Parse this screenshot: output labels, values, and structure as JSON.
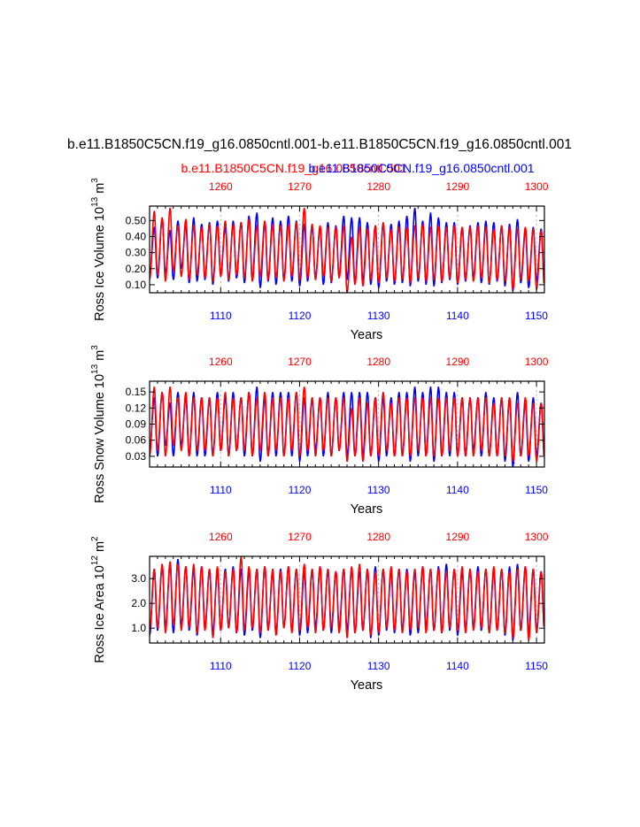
{
  "page": {
    "title": "b.e11.B1850C5CN.f19_g16.0850cntl.001-b.e11.B1850C5CN.f19_g16.0850cntl.001",
    "legend_red": "b.e11.B1850C5CN.f19_g16.0850cntl.001",
    "legend_blue": "b.e11.B1850C5CN.f19_g16.0850cntl.001"
  },
  "colors": {
    "red": "#ff0000",
    "blue": "#0000ff",
    "axis": "#000000",
    "grid": "#999999"
  },
  "chart_data": [
    {
      "type": "line",
      "ylabel_main": "Ross Ice Volume 10",
      "ylabel_exp": "13",
      "ylabel_unit": "m",
      "ylabel_unit_exp": "3",
      "xlabel": "Years",
      "xlim_bottom": [
        1101,
        1151
      ],
      "xlim_top": [
        1251,
        1301
      ],
      "ylim": [
        0.05,
        0.59
      ],
      "yticks": [
        0.1,
        0.2,
        0.3,
        0.4,
        0.5
      ],
      "yticklabels": [
        "0.10",
        "0.20",
        "0.30",
        "0.40",
        "0.50"
      ],
      "xticks_bottom": [
        1110,
        1120,
        1130,
        1140,
        1150
      ],
      "xticklabels_bottom": [
        "1110",
        "1120",
        "1130",
        "1140",
        "1150"
      ],
      "xticks_top": [
        1260,
        1270,
        1280,
        1290,
        1300
      ],
      "xticklabels_top": [
        "1260",
        "1270",
        "1280",
        "1290",
        "1300"
      ],
      "series": [
        {
          "name": "blue",
          "color": "#0000ff",
          "axis": "bottom",
          "max": [
            0.46,
            0.51,
            0.44,
            0.5,
            0.47,
            0.52,
            0.48,
            0.49,
            0.5,
            0.46,
            0.5,
            0.49,
            0.53,
            0.55,
            0.49,
            0.52,
            0.5,
            0.53,
            0.5,
            0.48,
            0.47,
            0.46,
            0.49,
            0.47,
            0.53,
            0.52,
            0.52,
            0.49,
            0.47,
            0.48,
            0.48,
            0.5,
            0.53,
            0.58,
            0.5,
            0.55,
            0.52,
            0.49,
            0.49,
            0.46,
            0.47,
            0.49,
            0.5,
            0.49,
            0.47,
            0.48,
            0.51,
            0.44,
            0.46,
            0.45
          ],
          "min": [
            0.15,
            0.14,
            0.17,
            0.13,
            0.2,
            0.11,
            0.12,
            0.13,
            0.1,
            0.16,
            0.12,
            0.14,
            0.11,
            0.13,
            0.08,
            0.12,
            0.1,
            0.13,
            0.12,
            0.09,
            0.12,
            0.14,
            0.1,
            0.11,
            0.15,
            0.13,
            0.11,
            0.12,
            0.1,
            0.08,
            0.12,
            0.1,
            0.11,
            0.09,
            0.12,
            0.1,
            0.09,
            0.11,
            0.13,
            0.1,
            0.12,
            0.14,
            0.11,
            0.1,
            0.12,
            0.09,
            0.06,
            0.11,
            0.08,
            0.12
          ]
        },
        {
          "name": "red",
          "color": "#ff0000",
          "axis": "top",
          "max": [
            0.56,
            0.52,
            0.58,
            0.47,
            0.51,
            0.47,
            0.46,
            0.48,
            0.47,
            0.5,
            0.48,
            0.49,
            0.51,
            0.47,
            0.5,
            0.48,
            0.47,
            0.48,
            0.49,
            0.58,
            0.48,
            0.47,
            0.46,
            0.46,
            0.47,
            0.4,
            0.46,
            0.45,
            0.47,
            0.49,
            0.45,
            0.46,
            0.46,
            0.47,
            0.48,
            0.46,
            0.47,
            0.46,
            0.47,
            0.46,
            0.46,
            0.47,
            0.46,
            0.45,
            0.47,
            0.46,
            0.45,
            0.46,
            0.45,
            0.44
          ],
          "min": [
            0.13,
            0.16,
            0.12,
            0.18,
            0.15,
            0.13,
            0.16,
            0.14,
            0.12,
            0.15,
            0.13,
            0.16,
            0.14,
            0.12,
            0.15,
            0.13,
            0.14,
            0.12,
            0.15,
            0.13,
            0.14,
            0.13,
            0.15,
            0.12,
            0.14,
            0.05,
            0.1,
            0.09,
            0.13,
            0.11,
            0.14,
            0.12,
            0.13,
            0.11,
            0.14,
            0.12,
            0.13,
            0.12,
            0.14,
            0.11,
            0.13,
            0.12,
            0.14,
            0.11,
            0.13,
            0.12,
            0.07,
            0.13,
            0.12,
            0.07
          ]
        }
      ]
    },
    {
      "type": "line",
      "ylabel_main": "Ross Snow Volume 10",
      "ylabel_exp": "13",
      "ylabel_unit": "m",
      "ylabel_unit_exp": "3",
      "xlabel": "Years",
      "xlim_bottom": [
        1101,
        1151
      ],
      "xlim_top": [
        1251,
        1301
      ],
      "ylim": [
        0.01,
        0.17
      ],
      "yticks": [
        0.03,
        0.06,
        0.09,
        0.12,
        0.15
      ],
      "yticklabels": [
        "0.03",
        "0.06",
        "0.09",
        "0.12",
        "0.15"
      ],
      "xticks_bottom": [
        1110,
        1120,
        1130,
        1140,
        1150
      ],
      "xticklabels_bottom": [
        "1110",
        "1120",
        "1130",
        "1140",
        "1150"
      ],
      "xticks_top": [
        1260,
        1270,
        1280,
        1290,
        1300
      ],
      "xticklabels_top": [
        "1260",
        "1270",
        "1280",
        "1290",
        "1300"
      ],
      "series": [
        {
          "name": "blue",
          "color": "#0000ff",
          "axis": "bottom",
          "max": [
            0.14,
            0.15,
            0.13,
            0.15,
            0.14,
            0.15,
            0.14,
            0.14,
            0.15,
            0.14,
            0.15,
            0.14,
            0.15,
            0.16,
            0.14,
            0.15,
            0.15,
            0.15,
            0.15,
            0.14,
            0.14,
            0.14,
            0.15,
            0.14,
            0.15,
            0.15,
            0.15,
            0.15,
            0.14,
            0.14,
            0.14,
            0.15,
            0.15,
            0.16,
            0.15,
            0.16,
            0.16,
            0.15,
            0.15,
            0.14,
            0.14,
            0.14,
            0.15,
            0.14,
            0.14,
            0.14,
            0.15,
            0.13,
            0.14,
            0.13
          ],
          "min": [
            0.04,
            0.03,
            0.05,
            0.03,
            0.05,
            0.03,
            0.03,
            0.03,
            0.03,
            0.04,
            0.03,
            0.04,
            0.03,
            0.03,
            0.02,
            0.03,
            0.03,
            0.03,
            0.03,
            0.02,
            0.03,
            0.04,
            0.03,
            0.03,
            0.04,
            0.03,
            0.03,
            0.03,
            0.03,
            0.02,
            0.03,
            0.03,
            0.03,
            0.02,
            0.03,
            0.03,
            0.02,
            0.03,
            0.03,
            0.03,
            0.03,
            0.04,
            0.03,
            0.03,
            0.03,
            0.02,
            0.01,
            0.03,
            0.02,
            0.03
          ]
        },
        {
          "name": "red",
          "color": "#ff0000",
          "axis": "top",
          "max": [
            0.16,
            0.15,
            0.16,
            0.14,
            0.15,
            0.14,
            0.14,
            0.14,
            0.14,
            0.15,
            0.14,
            0.14,
            0.15,
            0.14,
            0.15,
            0.14,
            0.14,
            0.14,
            0.15,
            0.16,
            0.14,
            0.14,
            0.14,
            0.14,
            0.14,
            0.12,
            0.14,
            0.13,
            0.14,
            0.15,
            0.13,
            0.14,
            0.14,
            0.14,
            0.14,
            0.14,
            0.14,
            0.14,
            0.14,
            0.14,
            0.14,
            0.14,
            0.14,
            0.13,
            0.14,
            0.14,
            0.13,
            0.14,
            0.13,
            0.13
          ],
          "min": [
            0.03,
            0.04,
            0.03,
            0.05,
            0.04,
            0.03,
            0.04,
            0.04,
            0.03,
            0.04,
            0.03,
            0.04,
            0.04,
            0.03,
            0.04,
            0.03,
            0.04,
            0.03,
            0.04,
            0.03,
            0.04,
            0.03,
            0.04,
            0.03,
            0.04,
            0.02,
            0.03,
            0.02,
            0.03,
            0.03,
            0.04,
            0.03,
            0.03,
            0.03,
            0.04,
            0.03,
            0.03,
            0.03,
            0.04,
            0.03,
            0.03,
            0.03,
            0.04,
            0.03,
            0.03,
            0.03,
            0.02,
            0.03,
            0.03,
            0.02
          ]
        }
      ]
    },
    {
      "type": "line",
      "ylabel_main": "Ross Ice Area 10",
      "ylabel_exp": "12",
      "ylabel_unit": "m",
      "ylabel_unit_exp": "2",
      "xlabel": "Years",
      "xlim_bottom": [
        1101,
        1151
      ],
      "xlim_top": [
        1251,
        1301
      ],
      "ylim": [
        0.4,
        3.9
      ],
      "yticks": [
        1.0,
        2.0,
        3.0
      ],
      "yticklabels": [
        "1.0",
        "2.0",
        "3.0"
      ],
      "xticks_bottom": [
        1110,
        1120,
        1130,
        1140,
        1150
      ],
      "xticklabels_bottom": [
        "1110",
        "1120",
        "1130",
        "1140",
        "1150"
      ],
      "xticks_top": [
        1260,
        1270,
        1280,
        1290,
        1300
      ],
      "xticklabels_top": [
        "1260",
        "1270",
        "1280",
        "1290",
        "1300"
      ],
      "series": [
        {
          "name": "blue",
          "color": "#0000ff",
          "axis": "bottom",
          "max": [
            3.4,
            3.5,
            3.6,
            3.8,
            3.5,
            3.4,
            3.5,
            3.4,
            3.3,
            3.4,
            3.5,
            3.4,
            3.3,
            3.4,
            3.5,
            3.3,
            3.4,
            3.5,
            3.4,
            3.3,
            3.4,
            3.5,
            3.4,
            3.3,
            3.4,
            3.4,
            3.3,
            3.4,
            3.5,
            3.4,
            3.3,
            3.4,
            3.4,
            3.3,
            3.5,
            3.4,
            3.5,
            3.6,
            3.4,
            3.3,
            3.4,
            3.5,
            3.4,
            3.3,
            3.4,
            3.5,
            3.6,
            3.5,
            3.4,
            3.3
          ],
          "min": [
            0.7,
            0.9,
            1.0,
            0.8,
            1.1,
            0.9,
            0.7,
            1.0,
            0.8,
            0.9,
            1.0,
            0.8,
            0.7,
            0.9,
            0.6,
            0.9,
            0.8,
            1.0,
            0.9,
            0.7,
            0.8,
            1.0,
            0.9,
            0.8,
            1.0,
            0.9,
            0.8,
            0.9,
            0.6,
            0.7,
            0.9,
            0.8,
            0.9,
            0.7,
            0.8,
            1.0,
            0.9,
            0.8,
            0.9,
            0.7,
            0.9,
            1.0,
            0.9,
            0.8,
            0.9,
            0.7,
            0.5,
            0.9,
            0.8,
            0.9
          ]
        },
        {
          "name": "red",
          "color": "#ff0000",
          "axis": "top",
          "max": [
            3.4,
            3.6,
            3.7,
            3.6,
            3.5,
            3.6,
            3.5,
            3.4,
            3.5,
            3.3,
            3.4,
            3.9,
            3.5,
            3.4,
            3.5,
            3.4,
            3.3,
            3.5,
            3.4,
            3.6,
            3.4,
            3.5,
            3.4,
            3.3,
            3.4,
            3.5,
            3.6,
            3.4,
            3.3,
            3.4,
            3.5,
            3.4,
            3.3,
            3.4,
            3.5,
            3.4,
            3.4,
            3.3,
            3.4,
            3.5,
            3.4,
            3.3,
            3.4,
            3.5,
            3.4,
            3.3,
            3.4,
            3.5,
            3.4,
            3.3
          ],
          "min": [
            0.9,
            1.0,
            0.8,
            1.1,
            0.9,
            1.0,
            0.8,
            0.9,
            0.6,
            0.9,
            1.0,
            0.8,
            0.9,
            1.0,
            0.8,
            0.9,
            0.7,
            1.0,
            0.8,
            0.9,
            1.0,
            0.8,
            0.9,
            1.0,
            0.8,
            0.6,
            0.8,
            0.9,
            0.7,
            0.8,
            1.0,
            0.9,
            0.8,
            0.9,
            1.0,
            0.8,
            0.9,
            0.8,
            1.0,
            0.9,
            0.8,
            0.9,
            1.0,
            0.8,
            0.9,
            0.8,
            0.6,
            0.9,
            0.5,
            0.8
          ]
        }
      ]
    }
  ]
}
